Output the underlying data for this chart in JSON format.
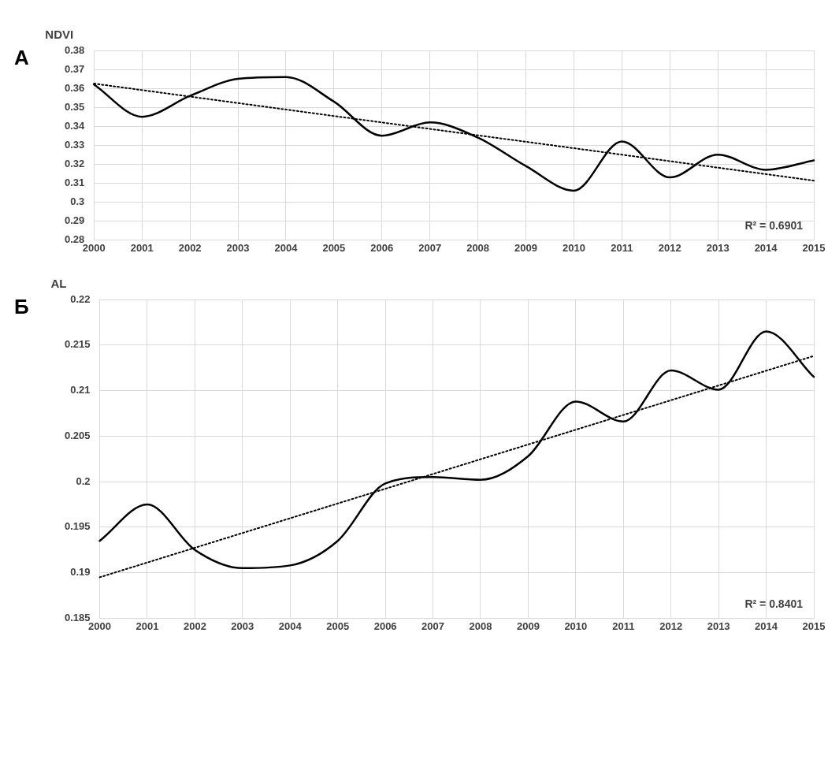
{
  "chart_data": [
    {
      "type": "line",
      "ylabel": "NDVI",
      "annotations": [
        "А",
        "R² = 0.6901"
      ],
      "x": [
        2000,
        2001,
        2002,
        2003,
        2004,
        2005,
        2006,
        2007,
        2008,
        2009,
        2010,
        2011,
        2012,
        2013,
        2014,
        2015
      ],
      "xlim": [
        2000,
        2015
      ],
      "xticks": [
        2000,
        2001,
        2002,
        2003,
        2004,
        2005,
        2006,
        2007,
        2008,
        2009,
        2010,
        2011,
        2012,
        2013,
        2014,
        2015
      ],
      "ylim": [
        0.28,
        0.38
      ],
      "yticks": [
        0.28,
        0.29,
        {
          "value": 0.3,
          "label": "0.3"
        },
        0.31,
        0.32,
        0.33,
        0.34,
        0.35,
        0.36,
        0.37,
        0.38
      ],
      "grid": true,
      "legend": false,
      "marker": "none",
      "series": [
        {
          "color": "#000000",
          "line_style": "solid",
          "values": [
            0.362,
            0.345,
            0.356,
            0.365,
            0.366,
            0.353,
            0.335,
            0.342,
            0.334,
            0.319,
            0.306,
            0.332,
            0.313,
            0.325,
            0.317,
            0.322
          ]
        },
        {
          "type": "line",
          "color": "#000000",
          "line_style": "dotted",
          "x": [
            2000,
            2005,
            2010,
            2015
          ],
          "values": [
            0.3625,
            0.3454,
            0.3284,
            0.3113
          ]
        }
      ]
    },
    {
      "type": "line",
      "ylabel": "AL",
      "annotations": [
        "Б",
        "R² = 0.8401"
      ],
      "x": [
        2000,
        2001,
        2002,
        2003,
        2004,
        2005,
        2006,
        2007,
        2008,
        2009,
        2010,
        2011,
        2012,
        2013,
        2014,
        2015
      ],
      "xlim": [
        2000,
        2015
      ],
      "xticks": [
        2000,
        2001,
        2002,
        2003,
        2004,
        2005,
        2006,
        2007,
        2008,
        2009,
        2010,
        2011,
        2012,
        2013,
        2014,
        2015
      ],
      "ylim": [
        0.185,
        0.22
      ],
      "yticks": [
        0.185,
        0.19,
        0.195,
        {
          "value": 0.2,
          "label": "0.2"
        },
        0.205,
        0.21,
        0.215,
        {
          "value": 0.22,
          "label": "0.22"
        }
      ],
      "grid": true,
      "legend": false,
      "marker": "none",
      "series": [
        {
          "color": "#000000",
          "line_style": "solid",
          "values": [
            0.1935,
            0.1975,
            0.1925,
            0.1905,
            0.1908,
            0.1935,
            0.1998,
            0.2005,
            0.2002,
            0.2028,
            0.2088,
            0.2066,
            0.2122,
            0.2101,
            0.2165,
            0.2115
          ]
        },
        {
          "type": "line",
          "color": "#000000",
          "line_style": "dotted",
          "x": [
            2000,
            2005,
            2010,
            2015
          ],
          "values": [
            0.1895,
            0.1976,
            0.2057,
            0.2138
          ]
        }
      ]
    }
  ]
}
